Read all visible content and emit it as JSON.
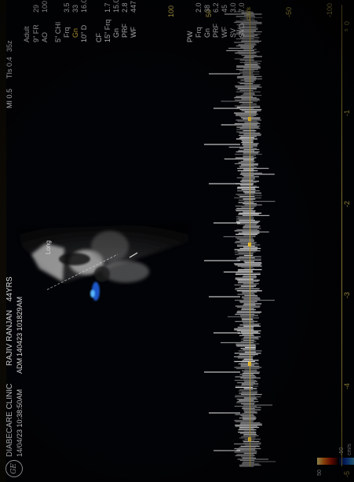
{
  "header": {
    "clinic": "DIABECARE CLINIC",
    "datetime": "14/04/23 10:38:50AM",
    "patient": "RAJIV RANJAN",
    "age": "44YRS",
    "adm": "ADM",
    "adm_time": "140423 101829AM",
    "mi": "MI 0.5",
    "tis": "TIs 0.4",
    "deg": "35z",
    "logo": "GE"
  },
  "color_bar": {
    "top_label": "50",
    "bottom_label": "-50",
    "unit": "cm/s"
  },
  "sector_label": "Long",
  "right_panel": {
    "preset": "Adult",
    "fr": "9\" FR",
    "fr_val": "29",
    "ao": "AO",
    "ao_val": "100",
    "probe": "5\" CHI",
    "frq": "Frq",
    "frq_val": "3.5",
    "gn": "Gn",
    "gn_val": "33",
    "d": "10\" D",
    "d_val": "16.0",
    "cf_title": "CF",
    "cf_frq": "15\" Frq",
    "cf_frq_val": "1.7",
    "cf_gn": "Gn",
    "cf_gn_val": "15.0",
    "cf_prf": "PRF",
    "cf_prf_val": "2.8",
    "cf_wf": "WF",
    "cf_wf_val": "447",
    "pw_title": "PW",
    "pw_frq": "Frq",
    "pw_frq_val": "2.0",
    "pw_gn": "Gn",
    "pw_gn_val": "38",
    "pw_prf": "PRF",
    "pw_prf_val": "6.2",
    "pw_wf": "WF",
    "pw_wf_val": "45",
    "pw_sv": "SV",
    "pw_sv_val": "3.0",
    "pw_svd": "SVD",
    "pw_svd_val": "7.0"
  },
  "velocity_scale": {
    "unit": "cm/s",
    "ticks": [
      "100",
      "50",
      "-50",
      "-100"
    ]
  },
  "time_axis": {
    "ticks": [
      "-5",
      "-4",
      "-3",
      "-2",
      "-1",
      "0"
    ],
    "unit": "s"
  }
}
